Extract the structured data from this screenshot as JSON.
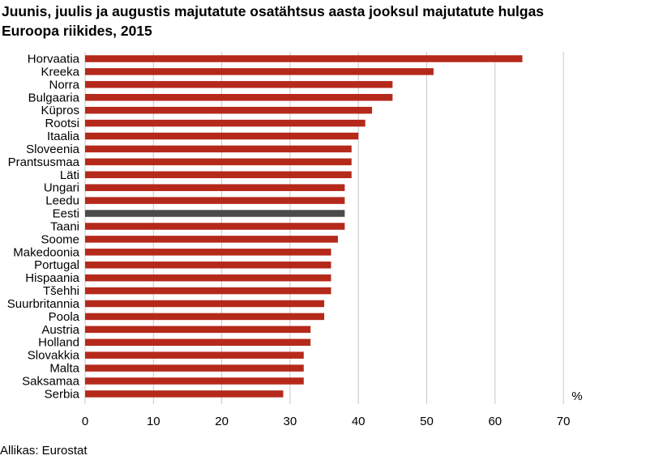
{
  "title_line1": "Juunis, juulis ja augustis majutatute osatähtsus aasta jooksul majutatute hulgas",
  "title_line2": "Euroopa riikides, 2015",
  "source": "Allikas: Eurostat",
  "colors": {
    "bar": "#b5291b",
    "highlight": "#4a4a4a",
    "grid": "#c8c8c8"
  },
  "chart_data": {
    "type": "bar",
    "orientation": "horizontal",
    "categories": [
      "Horvaatia",
      "Kreeka",
      "Norra",
      "Bulgaaria",
      "Küpros",
      "Rootsi",
      "Itaalia",
      "Sloveenia",
      "Prantsusmaa",
      "Läti",
      "Ungari",
      "Leedu",
      "Eesti",
      "Taani",
      "Soome",
      "Makedoonia",
      "Portugal",
      "Hispaania",
      "Tšehhi",
      "Suurbritannia",
      "Poola",
      "Austria",
      "Holland",
      "Slovakkia",
      "Malta",
      "Saksamaa",
      "Serbia"
    ],
    "values": [
      64,
      51,
      45,
      45,
      42,
      41,
      40,
      39,
      39,
      39,
      38,
      38,
      38,
      38,
      37,
      36,
      36,
      36,
      36,
      35,
      35,
      33,
      33,
      32,
      32,
      32,
      29
    ],
    "highlight": "Eesti",
    "xlim": [
      0,
      70
    ],
    "xticks": [
      0,
      10,
      20,
      30,
      40,
      50,
      60,
      70
    ],
    "unit": "%",
    "grid": true
  }
}
